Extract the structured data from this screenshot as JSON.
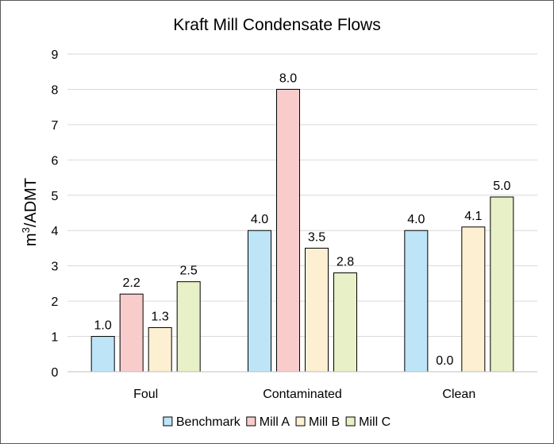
{
  "chart_data": {
    "type": "bar",
    "title": "Kraft Mill Condensate Flows",
    "ylabel_base": "m",
    "ylabel_sup": "3",
    "ylabel_rest": "/ADMT",
    "xlabel": "",
    "ylim": [
      0,
      9
    ],
    "yticks": [
      "0",
      "1",
      "2",
      "3",
      "4",
      "5",
      "6",
      "7",
      "8",
      "9"
    ],
    "grid": true,
    "legend_position": "bottom",
    "categories": [
      "Foul",
      "Contaminated",
      "Clean"
    ],
    "series": [
      {
        "name": "Benchmark",
        "color": "#bde4f7",
        "values": [
          1.0,
          4.0,
          4.0
        ],
        "labels": [
          "1.0",
          "4.0",
          "4.0"
        ]
      },
      {
        "name": "Mill A",
        "color": "#f9cccc",
        "values": [
          2.2,
          8.0,
          0.0
        ],
        "labels": [
          "2.2",
          "8.0",
          "0.0"
        ]
      },
      {
        "name": "Mill B",
        "color": "#fdf0d2",
        "values": [
          1.25,
          3.5,
          4.1
        ],
        "labels": [
          "1.3",
          "3.5",
          "4.1"
        ]
      },
      {
        "name": "Mill C",
        "color": "#e7f0c6",
        "values": [
          2.55,
          2.8,
          4.95
        ],
        "labels": [
          "2.5",
          "2.8",
          "5.0"
        ]
      }
    ]
  }
}
